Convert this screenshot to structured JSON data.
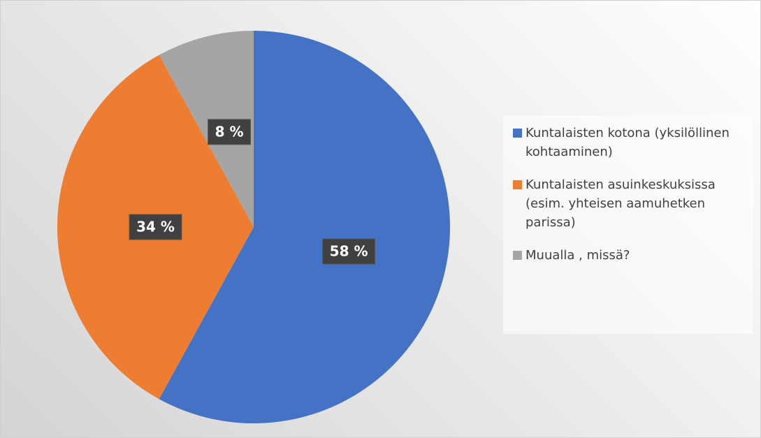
{
  "chart_data": {
    "type": "pie",
    "categories": [
      "Kuntalaisten kotona (yksilöllinen kohtaaminen)",
      "Kuntalaisten asuinkeskuksissa (esim. yhteisen aamuhetken parissa)",
      "Muualla , missä?"
    ],
    "values": [
      58,
      34,
      8
    ],
    "value_labels": [
      "58 %",
      "34 %",
      "8 %"
    ],
    "colors": [
      "#4472c4",
      "#ed7d31",
      "#a5a5a5"
    ],
    "legend": "right"
  }
}
